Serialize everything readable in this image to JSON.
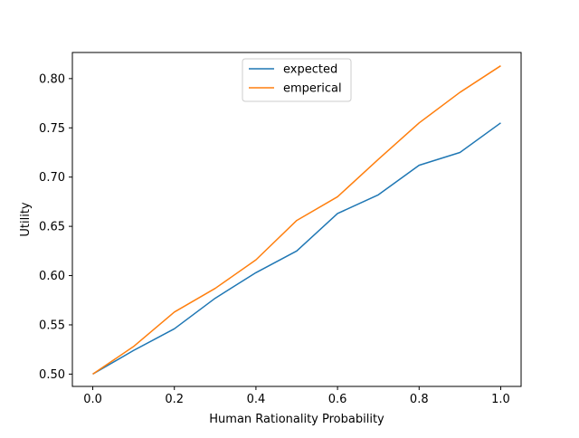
{
  "chart_data": {
    "type": "line",
    "title": "",
    "xlabel": "Human Rationality Probability",
    "ylabel": "Utility",
    "xlim": [
      -0.05,
      1.05
    ],
    "ylim": [
      0.4875,
      0.8265
    ],
    "x": [
      0.0,
      0.1,
      0.2,
      0.3,
      0.4,
      0.5,
      0.6,
      0.7,
      0.8,
      0.9,
      1.0
    ],
    "xticks": [
      0.0,
      0.2,
      0.4,
      0.6,
      0.8,
      1.0
    ],
    "xtick_labels": [
      "0.0",
      "0.2",
      "0.4",
      "0.6",
      "0.8",
      "1.0"
    ],
    "yticks": [
      0.5,
      0.55,
      0.6,
      0.65,
      0.7,
      0.75,
      0.8
    ],
    "ytick_labels": [
      "0.50",
      "0.55",
      "0.60",
      "0.65",
      "0.70",
      "0.75",
      "0.80"
    ],
    "grid": false,
    "legend_position": "upper center",
    "series": [
      {
        "name": "expected",
        "color": "#1f77b4",
        "values": [
          0.5,
          0.524,
          0.546,
          0.577,
          0.603,
          0.625,
          0.663,
          0.682,
          0.712,
          0.725,
          0.755
        ]
      },
      {
        "name": "emperical",
        "color": "#ff7f0e",
        "values": [
          0.5,
          0.528,
          0.563,
          0.587,
          0.616,
          0.656,
          0.68,
          0.718,
          0.755,
          0.786,
          0.813
        ]
      }
    ]
  }
}
